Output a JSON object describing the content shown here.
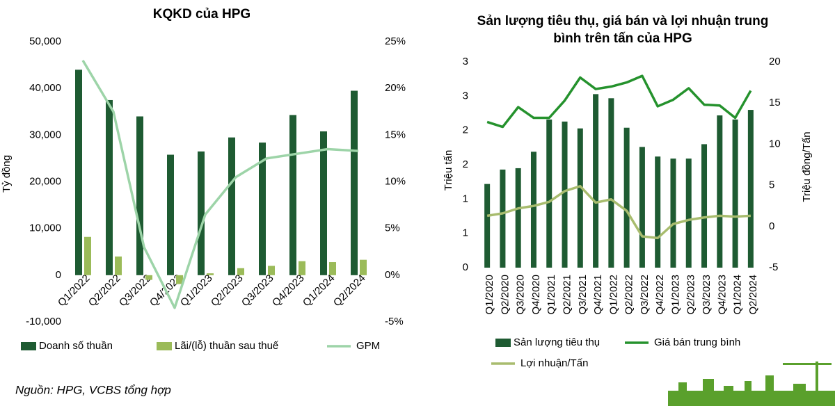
{
  "chart_data": [
    {
      "type": "combo",
      "title": "KQKD của HPG",
      "y_label": "Tỷ đồng",
      "categories": [
        "Q1/2022",
        "Q2/2022",
        "Q3/2022",
        "Q4/2022",
        "Q1/2023",
        "Q2/2023",
        "Q3/2023",
        "Q4/2023",
        "Q1/2024",
        "Q2/2024"
      ],
      "series": [
        {
          "name": "Doanh số thuần",
          "type": "bar",
          "color": "#1e5b32",
          "values": [
            44000,
            37500,
            34000,
            25800,
            26500,
            29500,
            28400,
            34300,
            30800,
            39500
          ]
        },
        {
          "name": "Lãi/(lỗ) thuần sau thuế",
          "type": "bar",
          "color": "#9bbb59",
          "values": [
            8200,
            4000,
            -1000,
            -1900,
            400,
            1500,
            2000,
            3000,
            2800,
            3300
          ]
        },
        {
          "name": "GPM",
          "type": "line",
          "axis": "y2",
          "color": "#9dd4a8",
          "values": [
            23,
            17.5,
            3,
            -3.5,
            6.5,
            10.5,
            12.5,
            13,
            13.5,
            13.3
          ]
        }
      ],
      "ylim": [
        -10000,
        50000
      ],
      "yticks": [
        {
          "value": -10000,
          "label": "-10,000"
        },
        0,
        {
          "value": 10000,
          "label": "10,000"
        },
        {
          "value": 20000,
          "label": "20,000"
        },
        {
          "value": 30000,
          "label": "30,000"
        },
        {
          "value": 40000,
          "label": "40,000"
        },
        {
          "value": 50000,
          "label": "50,000"
        }
      ],
      "y2lim": [
        -5,
        25
      ],
      "y2ticks": [
        {
          "value": -5,
          "label": "-5%"
        },
        {
          "value": 0,
          "label": "0%"
        },
        {
          "value": 5,
          "label": "5%"
        },
        {
          "value": 10,
          "label": "10%"
        },
        {
          "value": 15,
          "label": "15%"
        },
        {
          "value": 20,
          "label": "20%"
        },
        {
          "value": 25,
          "label": "25%"
        }
      ]
    },
    {
      "type": "combo",
      "title": "Sản lượng tiêu thụ, giá bán và lợi nhuận trung bình trên tấn của HPG",
      "y_label": "Triệu tấn",
      "y2_label": "Triệu đồng/Tấn",
      "categories": [
        "Q1/2020",
        "Q2/2020",
        "Q3/2020",
        "Q4/2020",
        "Q1/2021",
        "Q2/2021",
        "Q3/2021",
        "Q4/2021",
        "Q1/2022",
        "Q2/2022",
        "Q3/2022",
        "Q4/2022",
        "Q1/2023",
        "Q2/2023",
        "Q3/2023",
        "Q4/2023",
        "Q1/2024",
        "Q2/2024"
      ],
      "series": [
        {
          "name": "Sản lượng tiêu thụ",
          "type": "bar",
          "color": "#1e5b32",
          "values": [
            1.22,
            1.43,
            1.45,
            1.69,
            2.16,
            2.13,
            2.03,
            2.53,
            2.47,
            2.04,
            1.76,
            1.62,
            1.59,
            1.59,
            1.8,
            2.22,
            2.16,
            2.3
          ]
        },
        {
          "name": "Giá bán trung bình",
          "type": "line",
          "axis": "y2",
          "color": "#25922d",
          "values": [
            12.7,
            12.1,
            14.5,
            13.2,
            13.2,
            15.3,
            18.1,
            16.7,
            17,
            17.5,
            18.3,
            14.6,
            15.4,
            16.8,
            14.8,
            14.7,
            13.2,
            16.5
          ]
        },
        {
          "name": "Lợi nhuận/Tấn",
          "type": "line",
          "axis": "y2",
          "color": "#a8bc6e",
          "values": [
            1.3,
            1.6,
            2.2,
            2.5,
            3,
            4.3,
            4.9,
            2.9,
            3.3,
            1.9,
            -1.2,
            -1.4,
            0.3,
            0.8,
            1.1,
            1.3,
            1.2,
            1.3
          ]
        }
      ],
      "ylim": [
        0,
        3
      ],
      "yticks": [
        0,
        {
          "value": 0.5,
          "label": "1"
        },
        1,
        {
          "value": 1.5,
          "label": "2"
        },
        2,
        {
          "value": 2.5,
          "label": "3"
        },
        3
      ],
      "y2lim": [
        -5,
        20
      ],
      "y2ticks": [
        -5,
        0,
        5,
        10,
        15,
        20
      ]
    }
  ],
  "source": "Nguồn: HPG, VCBS tổng hợp"
}
